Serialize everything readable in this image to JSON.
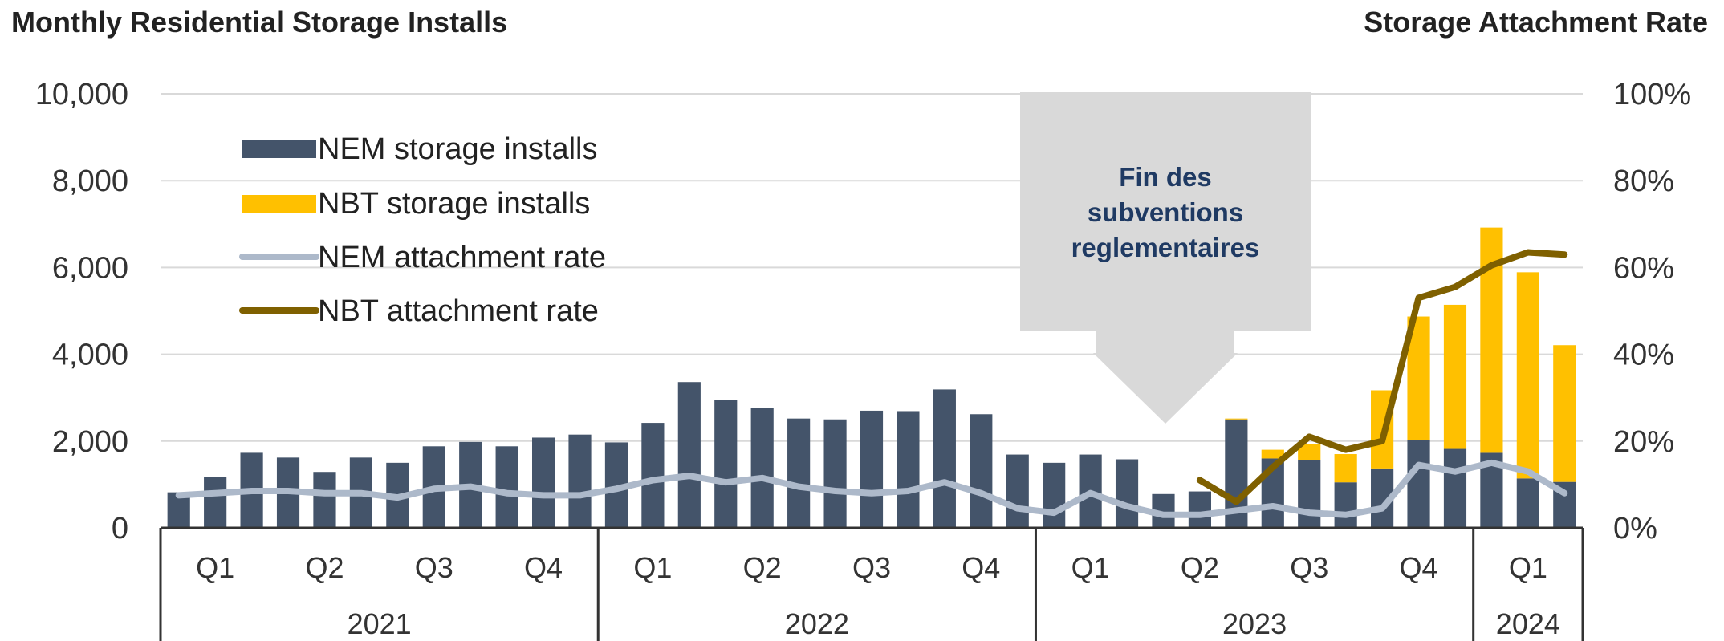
{
  "chart_data": {
    "type": "bar",
    "title_left": "Monthly Residential Storage Installs",
    "title_right": "Storage Attachment Rate",
    "ylim": [
      0,
      10000
    ],
    "y_ticks": [
      "10,000",
      "8,000",
      "6,000",
      "4,000",
      "2,000",
      "0"
    ],
    "y2lim": [
      0,
      100
    ],
    "y2_ticks": [
      "100%",
      "80%",
      "60%",
      "40%",
      "20%",
      "0%"
    ],
    "quarters": [
      "Q1",
      "Q2",
      "Q3",
      "Q4",
      "Q1",
      "Q2",
      "Q3",
      "Q4",
      "Q1",
      "Q2",
      "Q3",
      "Q4",
      "Q1"
    ],
    "years": [
      "2021",
      "2022",
      "2023",
      "2024"
    ],
    "legend": {
      "nem_installs": "NEM storage installs",
      "nbt_installs": "NBT storage installs",
      "nem_rate": "NEM attachment rate",
      "nbt_rate": "NBT attachment rate"
    },
    "annotation": {
      "lines": [
        "Fin des",
        "subventions",
        "reglementaires"
      ]
    },
    "colors": {
      "nem_bar": "#44546a",
      "nbt_bar": "#ffc000",
      "nem_line": "#adb9ca",
      "nbt_line": "#7f6000",
      "callout": "#d9d9d9",
      "grid": "#d9d9d9",
      "title": "#1f3a63"
    },
    "series": [
      {
        "key": "nem_installs",
        "values": [
          820,
          1170,
          1730,
          1620,
          1290,
          1620,
          1500,
          1880,
          1980,
          1880,
          2080,
          2150,
          1970,
          2420,
          3360,
          2940,
          2770,
          2520,
          2500,
          2700,
          2690,
          3190,
          2620,
          1690,
          1500,
          1690,
          1580,
          780,
          840,
          2500,
          1600,
          1560,
          1050,
          1370,
          2030,
          1820,
          1730,
          1140,
          1060
        ]
      },
      {
        "key": "nbt_installs",
        "values": [
          0,
          0,
          0,
          0,
          0,
          0,
          0,
          0,
          0,
          0,
          0,
          0,
          0,
          0,
          0,
          0,
          0,
          0,
          0,
          0,
          0,
          0,
          0,
          0,
          0,
          0,
          0,
          0,
          0,
          20,
          200,
          380,
          650,
          1800,
          2840,
          3320,
          5190,
          4750,
          3150
        ]
      },
      {
        "key": "nem_rate",
        "values": [
          7.5,
          8,
          8.5,
          8.5,
          8,
          8,
          7,
          9,
          9.5,
          8,
          7.5,
          7.5,
          9,
          11,
          12,
          10.5,
          11.5,
          9.5,
          8.5,
          8,
          8.5,
          10.5,
          8,
          4.5,
          3.5,
          8,
          5,
          3,
          3,
          4,
          5,
          3.5,
          3,
          4.5,
          14.5,
          13,
          15,
          13,
          8
        ]
      },
      {
        "key": "nbt_rate",
        "values": [
          null,
          null,
          null,
          null,
          null,
          null,
          null,
          null,
          null,
          null,
          null,
          null,
          null,
          null,
          null,
          null,
          null,
          null,
          null,
          null,
          null,
          null,
          null,
          null,
          null,
          null,
          null,
          null,
          11,
          6,
          14,
          21,
          18,
          20,
          53,
          55.5,
          60.5,
          63.5,
          63
        ]
      }
    ]
  }
}
